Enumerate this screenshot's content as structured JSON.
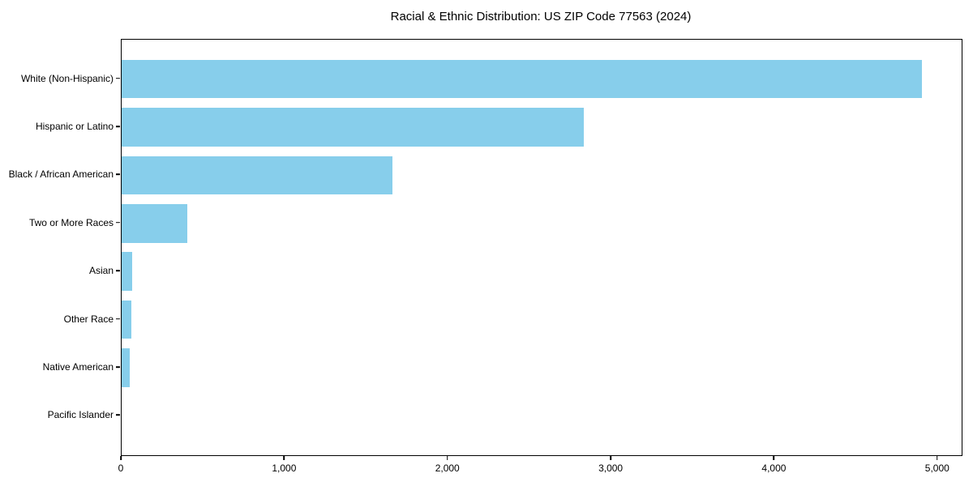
{
  "chart_data": {
    "type": "bar",
    "orientation": "horizontal",
    "title": "Racial & Ethnic Distribution: US ZIP Code 77563 (2024)",
    "categories": [
      "White (Non-Hispanic)",
      "Hispanic or Latino",
      "Black / African American",
      "Two or More Races",
      "Asian",
      "Other Race",
      "Native American",
      "Pacific Islander"
    ],
    "values": [
      4900,
      2830,
      1660,
      400,
      65,
      60,
      50,
      0
    ],
    "xlabel": "",
    "ylabel": "",
    "xlim": [
      0,
      5145
    ],
    "x_ticks": [
      0,
      1000,
      2000,
      3000,
      4000,
      5000
    ],
    "x_tick_labels": [
      "0",
      "1,000",
      "2,000",
      "3,000",
      "4,000",
      "5,000"
    ],
    "bar_color": "#87CEEB",
    "axis_color": "#000000",
    "text_color": "#000000",
    "grid": false,
    "legend": null
  }
}
